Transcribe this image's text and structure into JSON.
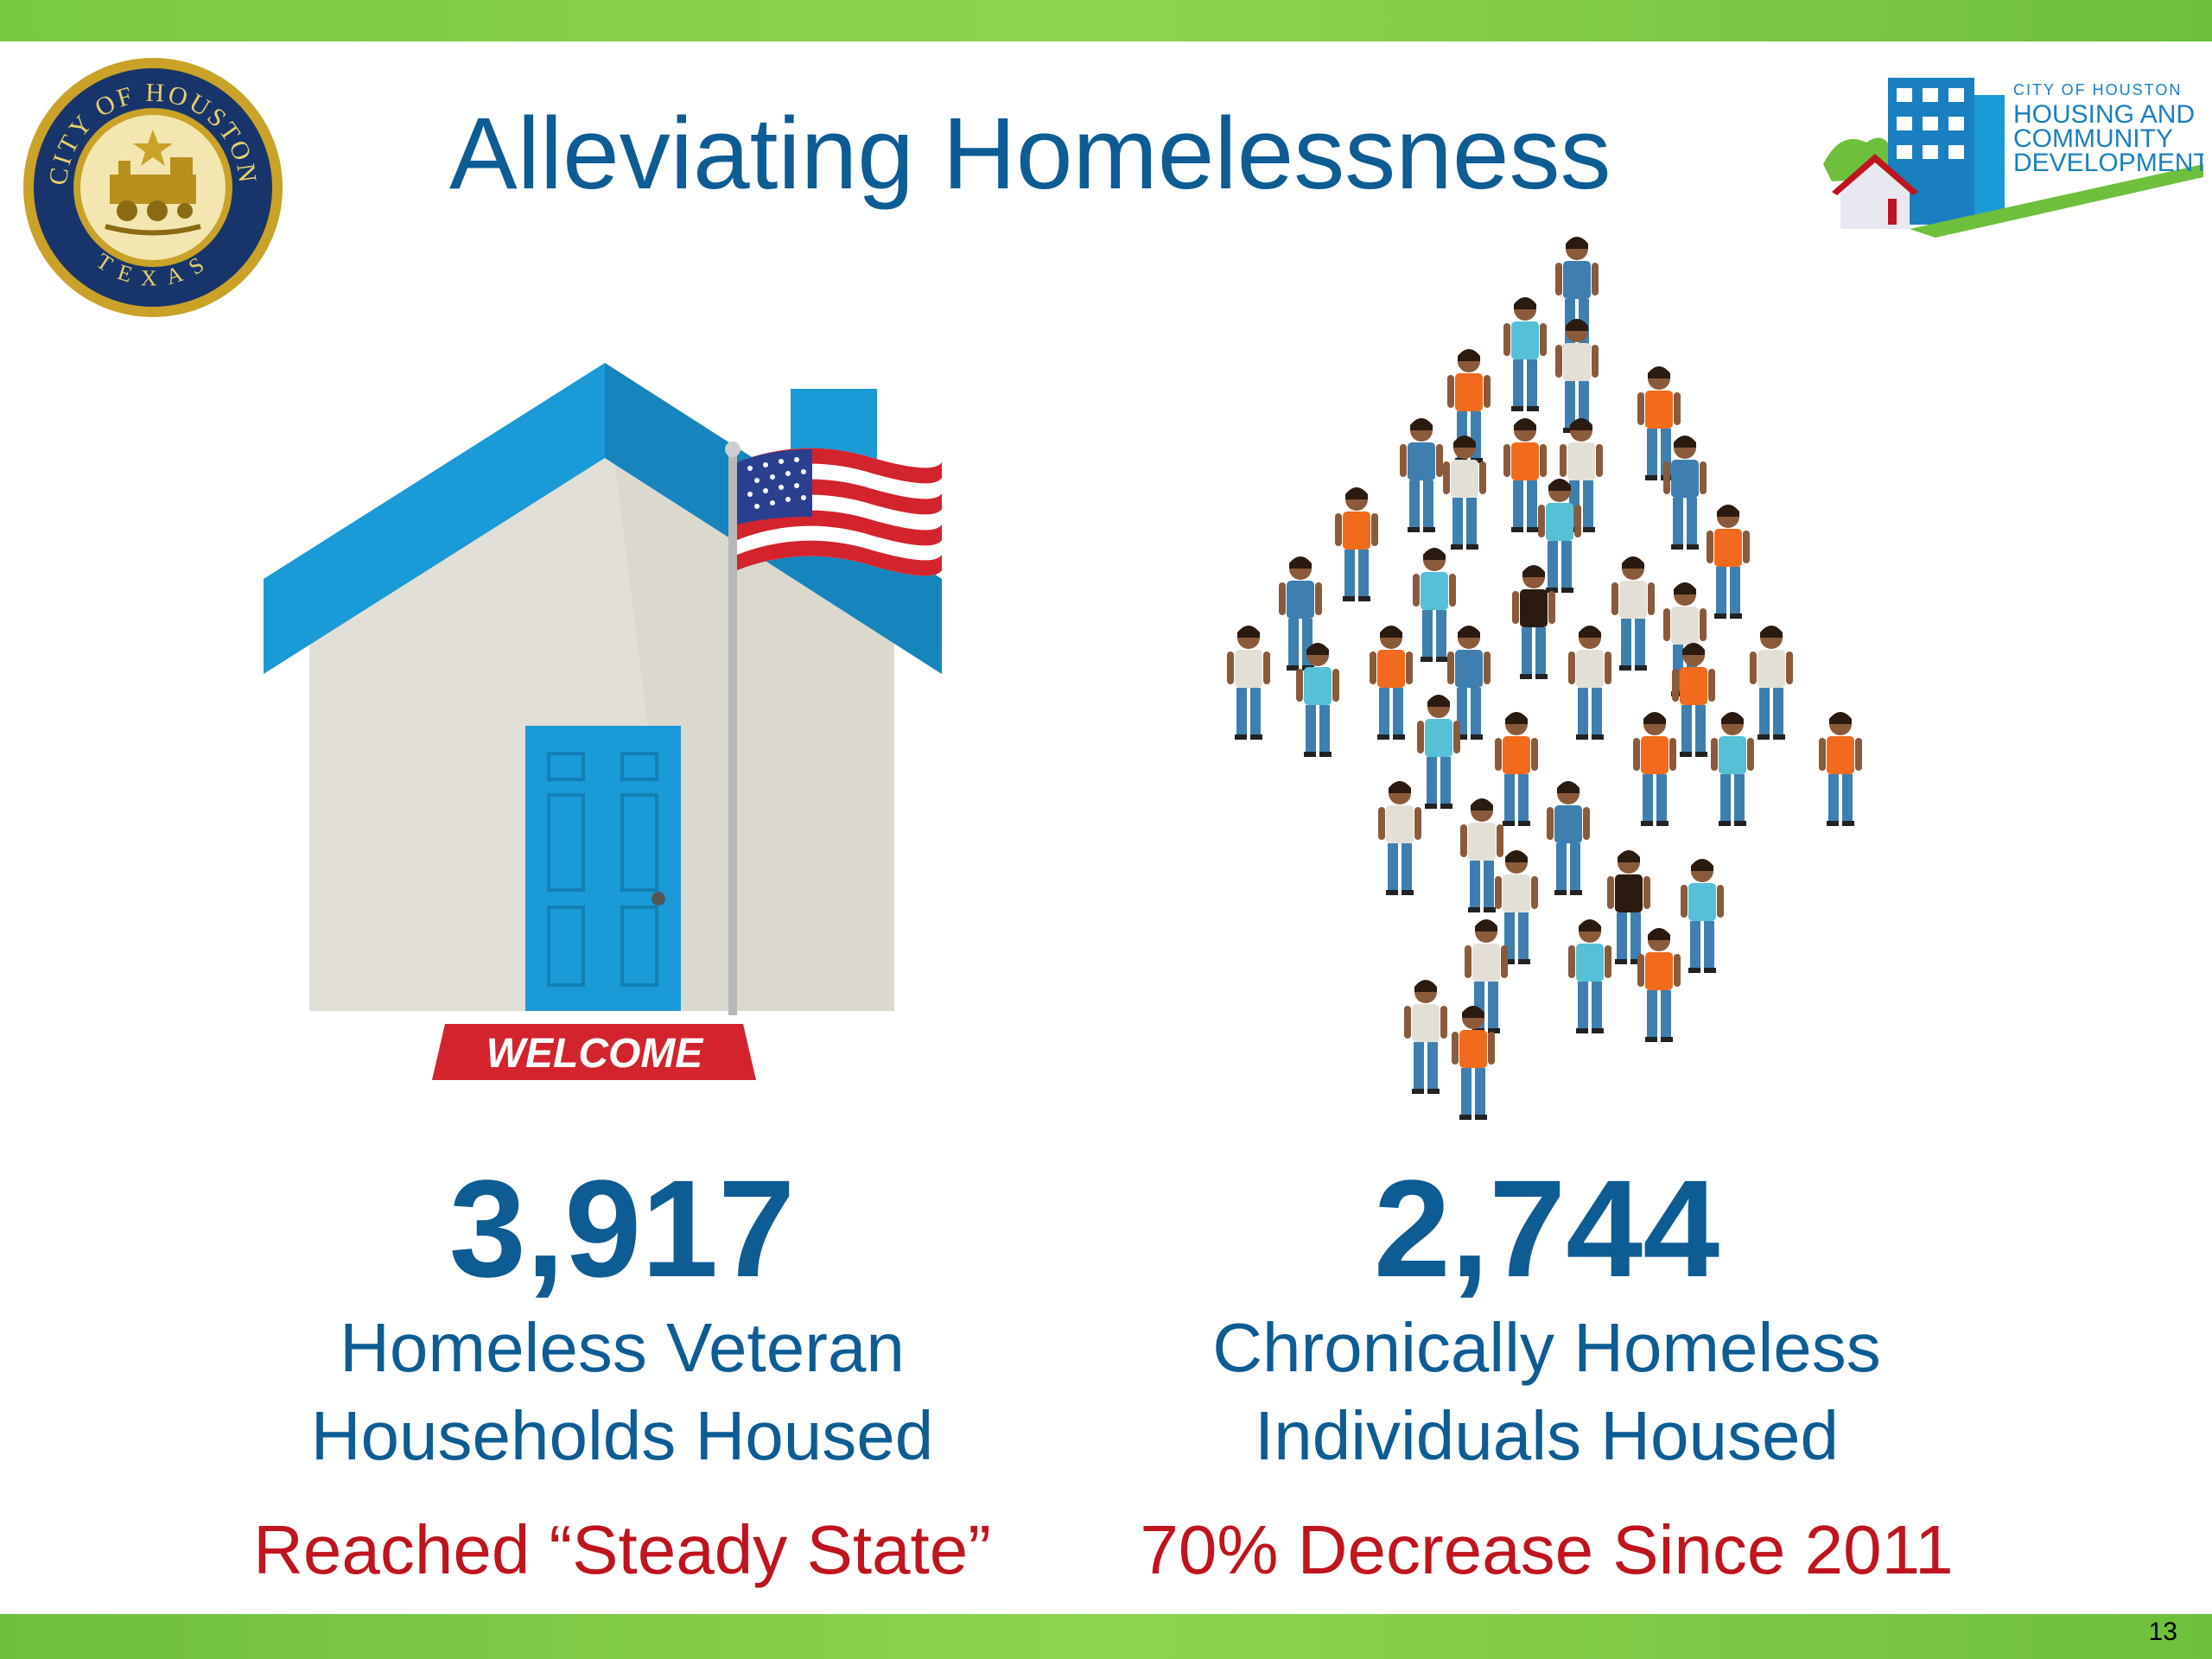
{
  "title": "Alleviating Homelessness",
  "page_number": "13",
  "seal": {
    "ring_text": "CITY OF HOUSTON",
    "bottom_text": "TEXAS"
  },
  "logo": {
    "line1": "CITY OF HOUSTON",
    "line2": "HOUSING AND",
    "line3": "COMMUNITY",
    "line4": "DEVELOPMENT"
  },
  "house": {
    "mat_text": "WELCOME"
  },
  "stats": [
    {
      "value": "3,917",
      "label_line1": "Homeless Veteran",
      "label_line2": "Households Housed",
      "note": "Reached “Steady State”"
    },
    {
      "value": "2,744",
      "label_line1": "Chronically Homeless",
      "label_line2": "Individuals Housed",
      "note": "70% Decrease Since 2011"
    }
  ],
  "colors": {
    "brand_blue": "#0d5c94",
    "accent_red": "#c0141e",
    "bar_green": "#7ac943",
    "roof_blue": "#1a9ad6",
    "wall_gray": "#e2e0d6",
    "shirt_orange": "#f26a1b",
    "shirt_teal": "#56c0d6",
    "denim": "#3e7fb0"
  }
}
